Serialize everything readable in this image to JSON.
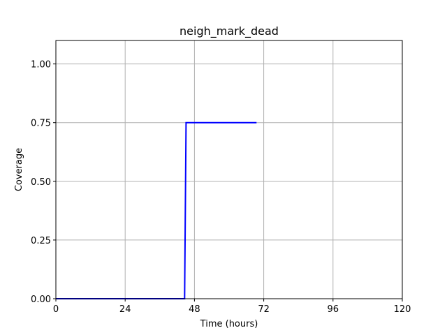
{
  "chart_data": {
    "type": "line",
    "title": "neigh_mark_dead",
    "xlabel": "Time (hours)",
    "ylabel": "Coverage",
    "xlim": [
      0,
      120
    ],
    "ylim": [
      0,
      1.1
    ],
    "xticks": [
      0,
      24,
      48,
      72,
      96,
      120
    ],
    "yticks": [
      0.0,
      0.25,
      0.5,
      0.75,
      1.0
    ],
    "xtick_labels": [
      "0",
      "24",
      "48",
      "72",
      "96",
      "120"
    ],
    "ytick_labels": [
      "0.00",
      "0.25",
      "0.50",
      "0.75",
      "1.00"
    ],
    "grid": true,
    "series": [
      {
        "color": "#0000ff",
        "x": [
          0,
          44.6,
          45.1,
          69.5
        ],
        "y": [
          0,
          0,
          0.75,
          0.75
        ]
      }
    ]
  }
}
